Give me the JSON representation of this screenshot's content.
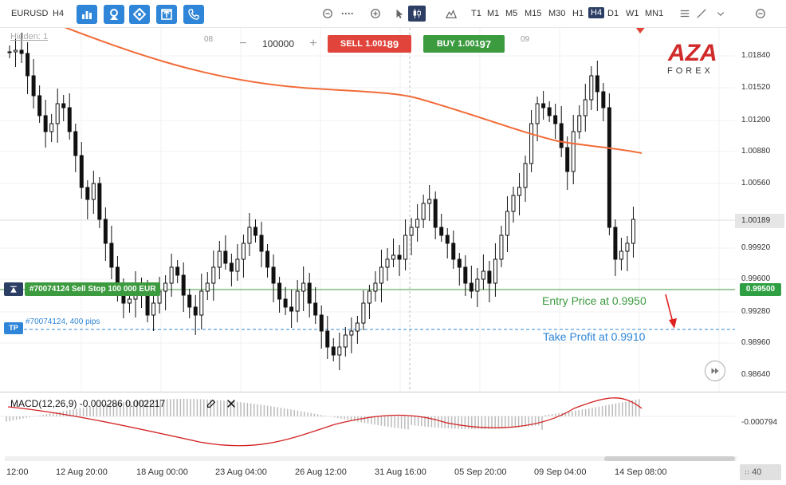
{
  "toolbar": {
    "symbol": "EURUSD",
    "timeframe_current": "H4",
    "timeframes": [
      "T1",
      "M1",
      "M5",
      "M15",
      "M30",
      "H1",
      "H4",
      "D1",
      "W1",
      "MN1"
    ],
    "active_timeframe": "H4",
    "icons": [
      "bar-chart-icon",
      "indicators-icon",
      "objects-icon",
      "trade-icon",
      "phone-icon",
      "settings-circle-icon",
      "dots-icon",
      "add-circle-icon",
      "pointer-icon",
      "candles-icon",
      "mountain-chart-icon",
      "list-icon",
      "draw-line-icon",
      "close-circle-icon"
    ]
  },
  "chart": {
    "hidden_label": "Hidden: 1",
    "session_labels": [
      "08",
      "09"
    ],
    "quantity": "100000",
    "sell": {
      "label": "SELL",
      "price_main": "1.001",
      "price_big": "89"
    },
    "buy": {
      "label": "BUY",
      "price_main": "1.001",
      "price_big": "97"
    },
    "current_price": "1.00189",
    "entry_price_label": "0.99500",
    "order_label": "#70074124 Sell Stop 100 000 EUR",
    "tp_badge": "TP",
    "tp_label": "#70074124, 400 pips",
    "entry_annotation": "Entry Price at 0.9950",
    "tp_annotation": "Take Profit at 0.9910",
    "logo": {
      "text_top": "AZA",
      "text_bottom": "FOREX",
      "color": "#d12a2a"
    },
    "price_ticks": [
      "1.01840",
      "1.01520",
      "1.01200",
      "1.00880",
      "1.00560",
      "0.99920",
      "0.99600",
      "0.99280",
      "0.98960",
      "0.98640"
    ],
    "colors": {
      "ma": "#f26b38",
      "entry": "#3c9a3f",
      "tp": "#2f86d8",
      "sell": "#e0443b",
      "buy": "#3c9a3f"
    }
  },
  "macd": {
    "title": "MACD(12,26,9) -0.000286 0.002217",
    "axis_value": "-0.000794"
  },
  "time_axis": [
    "12:00",
    "12 Aug 20:00",
    "18 Aug 00:00",
    "23 Aug 04:00",
    "26 Aug 12:00",
    "31 Aug 16:00",
    "05 Sep 20:00",
    "09 Sep 04:00",
    "14 Sep 08:00"
  ],
  "zoom": "40"
}
